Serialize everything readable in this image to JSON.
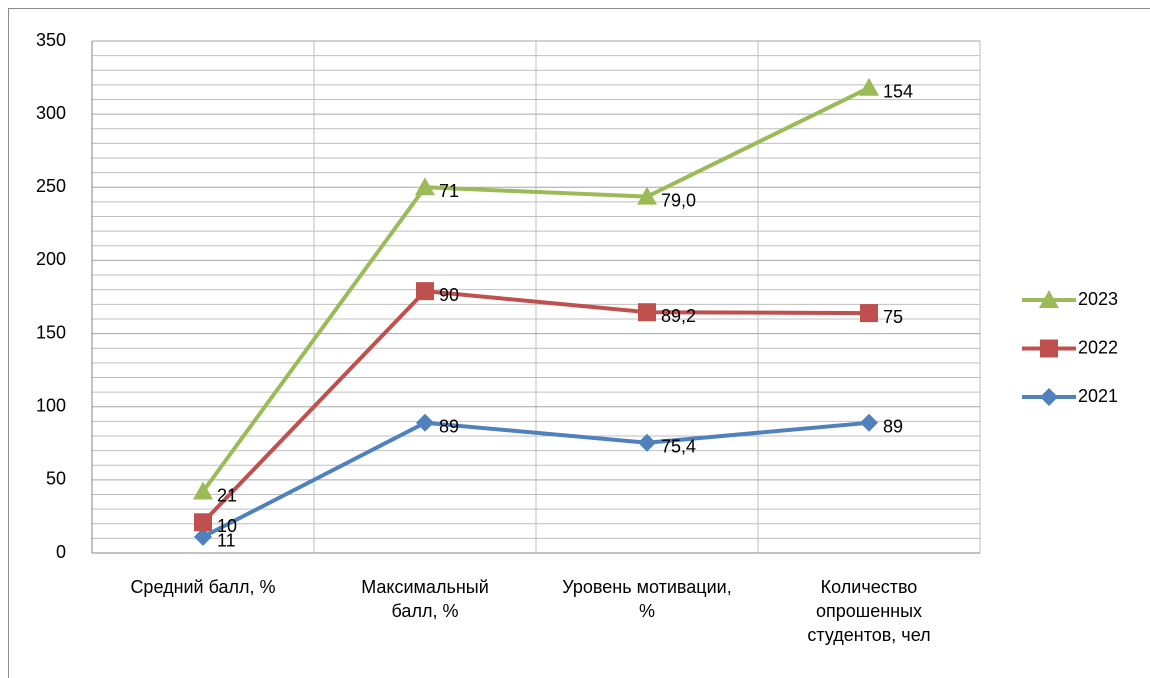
{
  "chart_data": {
    "type": "line",
    "stacked": true,
    "categories": [
      "Средний балл, %",
      "Максимальный балл, %",
      "Уровень мотивации, %",
      "Количество опрошенных студентов, чел"
    ],
    "series": [
      {
        "name": "2021",
        "color": "#4f81bd",
        "marker": "diamond",
        "values": [
          11,
          89,
          75.4,
          89
        ],
        "value_labels": [
          "11",
          "89",
          "75,4",
          "89"
        ]
      },
      {
        "name": "2022",
        "color": "#c0504d",
        "marker": "square",
        "values": [
          10,
          90,
          89.2,
          75
        ],
        "value_labels": [
          "10",
          "90",
          "89,2",
          "75"
        ]
      },
      {
        "name": "2023",
        "color": "#9bbb59",
        "marker": "triangle",
        "values": [
          21,
          71,
          79.0,
          154
        ],
        "value_labels": [
          "21",
          "71",
          "79,0",
          "154"
        ]
      }
    ],
    "ylim": [
      0,
      350
    ],
    "yticks": [
      0,
      50,
      100,
      150,
      200,
      250,
      300,
      350
    ],
    "yminorticks": [
      10,
      20,
      30,
      40,
      60,
      70,
      80,
      90,
      110,
      120,
      130,
      140,
      160,
      170,
      180,
      190,
      210,
      220,
      230,
      240,
      260,
      270,
      280,
      290,
      310,
      320,
      330,
      340
    ],
    "grid": true,
    "legend": "right"
  }
}
